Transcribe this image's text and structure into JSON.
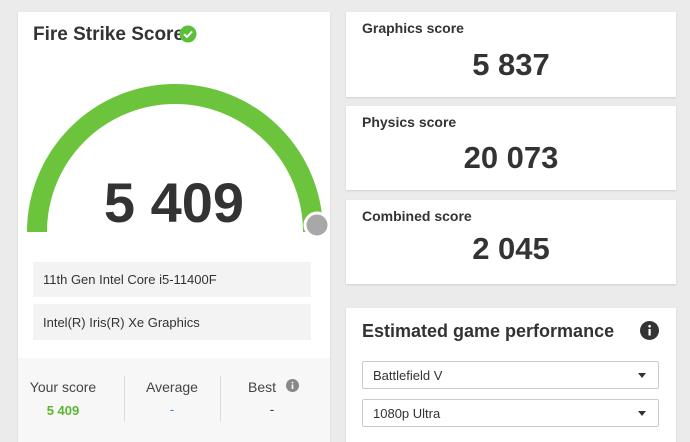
{
  "left_panel": {
    "title": "Fire Strike Score",
    "score": "5 409",
    "cpu": "11th Gen Intel Core i5-11400F",
    "gpu": "Intel(R) Iris(R) Xe Graphics",
    "stats": [
      {
        "label": "Your score",
        "value": "5 409"
      },
      {
        "label": "Average",
        "value": "-"
      },
      {
        "label": "Best",
        "value": "-"
      }
    ]
  },
  "scores": [
    {
      "label": "Graphics score",
      "value": "5 837"
    },
    {
      "label": "Physics score",
      "value": "20 073"
    },
    {
      "label": "Combined score",
      "value": "2 045"
    }
  ],
  "game_performance": {
    "title": "Estimated game performance",
    "game": "Battlefield V",
    "setting": "1080p Ultra"
  }
}
